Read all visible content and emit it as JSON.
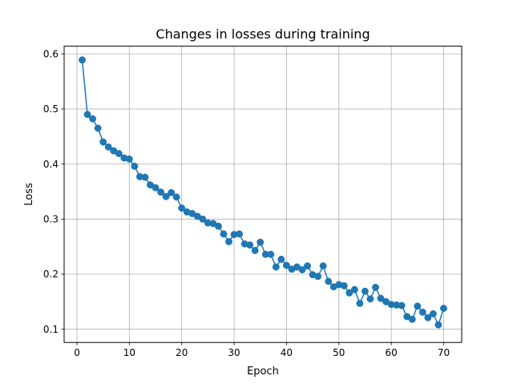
{
  "chart_data": {
    "type": "line",
    "title": "Changes in losses during training",
    "xlabel": "Epoch",
    "ylabel": "Loss",
    "xlim": [
      -2.45,
      73.45
    ],
    "ylim": [
      0.076,
      0.614
    ],
    "x_ticks": [
      0,
      10,
      20,
      30,
      40,
      50,
      60,
      70
    ],
    "y_ticks": [
      0.1,
      0.2,
      0.3,
      0.4,
      0.5,
      0.6
    ],
    "x_tick_labels": [
      "0",
      "10",
      "20",
      "30",
      "40",
      "50",
      "60",
      "70"
    ],
    "y_tick_labels": [
      "0.1",
      "0.2",
      "0.3",
      "0.4",
      "0.5",
      "0.6"
    ],
    "grid": true,
    "series": [
      {
        "color": "#1f77b4",
        "marker": "circle",
        "x": [
          1,
          2,
          3,
          4,
          5,
          6,
          7,
          8,
          9,
          10,
          11,
          12,
          13,
          14,
          15,
          16,
          17,
          18,
          19,
          20,
          21,
          22,
          23,
          24,
          25,
          26,
          27,
          28,
          29,
          30,
          31,
          32,
          33,
          34,
          35,
          36,
          37,
          38,
          39,
          40,
          41,
          42,
          43,
          44,
          45,
          46,
          47,
          48,
          49,
          50,
          51,
          52,
          53,
          54,
          55,
          56,
          57,
          58,
          59,
          60,
          61,
          62,
          63,
          64,
          65,
          66,
          67,
          68,
          69,
          70
        ],
        "y": [
          0.589,
          0.49,
          0.482,
          0.465,
          0.44,
          0.431,
          0.424,
          0.419,
          0.411,
          0.409,
          0.396,
          0.377,
          0.376,
          0.362,
          0.357,
          0.349,
          0.341,
          0.348,
          0.34,
          0.32,
          0.313,
          0.31,
          0.305,
          0.3,
          0.293,
          0.292,
          0.287,
          0.273,
          0.259,
          0.272,
          0.273,
          0.255,
          0.253,
          0.243,
          0.258,
          0.236,
          0.236,
          0.213,
          0.227,
          0.216,
          0.209,
          0.213,
          0.208,
          0.215,
          0.199,
          0.196,
          0.215,
          0.187,
          0.177,
          0.181,
          0.179,
          0.166,
          0.172,
          0.147,
          0.169,
          0.155,
          0.176,
          0.156,
          0.15,
          0.145,
          0.144,
          0.143,
          0.123,
          0.118,
          0.142,
          0.131,
          0.121,
          0.128,
          0.108,
          0.138
        ]
      }
    ]
  }
}
